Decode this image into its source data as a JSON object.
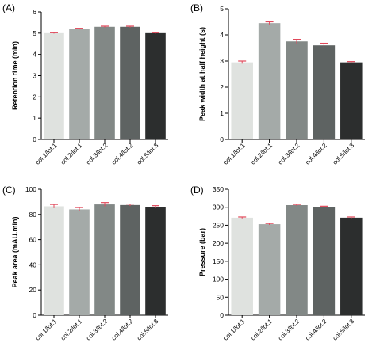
{
  "chart_data": [
    {
      "panel": "(A)",
      "type": "bar",
      "ylabel": "Retention time (min)",
      "ylim": [
        0,
        6
      ],
      "yticks": [
        0,
        1,
        2,
        3,
        4,
        5,
        6
      ],
      "categories": [
        "col.1/lot.1",
        "col.2/lot.1",
        "col.3/lot.2",
        "col.4/lot.2",
        "col.5/lot.3"
      ],
      "values": [
        5.0,
        5.2,
        5.3,
        5.3,
        5.0
      ],
      "errors": [
        0.02,
        0.03,
        0.03,
        0.03,
        0.02
      ]
    },
    {
      "panel": "(B)",
      "type": "bar",
      "ylabel": "Peak width at half height (s)",
      "ylim": [
        0,
        5
      ],
      "yticks": [
        0,
        1,
        2,
        3,
        4,
        5
      ],
      "categories": [
        "col.1/lot.1",
        "col.2/lot.1",
        "col.3/lot.2",
        "col.4/lot.2",
        "col.5/lot.3"
      ],
      "values": [
        2.95,
        4.45,
        3.75,
        3.6,
        2.95
      ],
      "errors": [
        0.05,
        0.05,
        0.08,
        0.08,
        0.03
      ]
    },
    {
      "panel": "(C)",
      "type": "bar",
      "ylabel": "Peak area (mAU.min)",
      "ylim": [
        0,
        100
      ],
      "yticks": [
        0,
        20,
        40,
        60,
        80,
        100
      ],
      "categories": [
        "col.1/lot.1",
        "col.2/lot.1",
        "col.3/lot.2",
        "col.4/lot.2",
        "col.5/lot.3"
      ],
      "values": [
        86.5,
        84,
        88,
        87.5,
        86
      ],
      "errors": [
        1.5,
        1.5,
        1.5,
        0.8,
        1.0
      ]
    },
    {
      "panel": "(D)",
      "type": "bar",
      "ylabel": "Pressure (bar)",
      "ylim": [
        0,
        350
      ],
      "yticks": [
        0,
        50,
        100,
        150,
        200,
        250,
        300,
        350
      ],
      "categories": [
        "col.1/lot.1",
        "col.2/lot.1",
        "col.3/lot.2",
        "col.4/lot.2",
        "col.5/lot.3"
      ],
      "values": [
        271,
        253,
        306,
        301,
        271
      ],
      "errors": [
        2,
        2,
        2,
        2,
        2
      ]
    }
  ],
  "colors": {
    "bars": [
      "#dfe2df",
      "#a4aaa8",
      "#828886",
      "#5e6362",
      "#2c2e2e"
    ],
    "error_bar": "#e0485a",
    "axis": "#000000"
  }
}
